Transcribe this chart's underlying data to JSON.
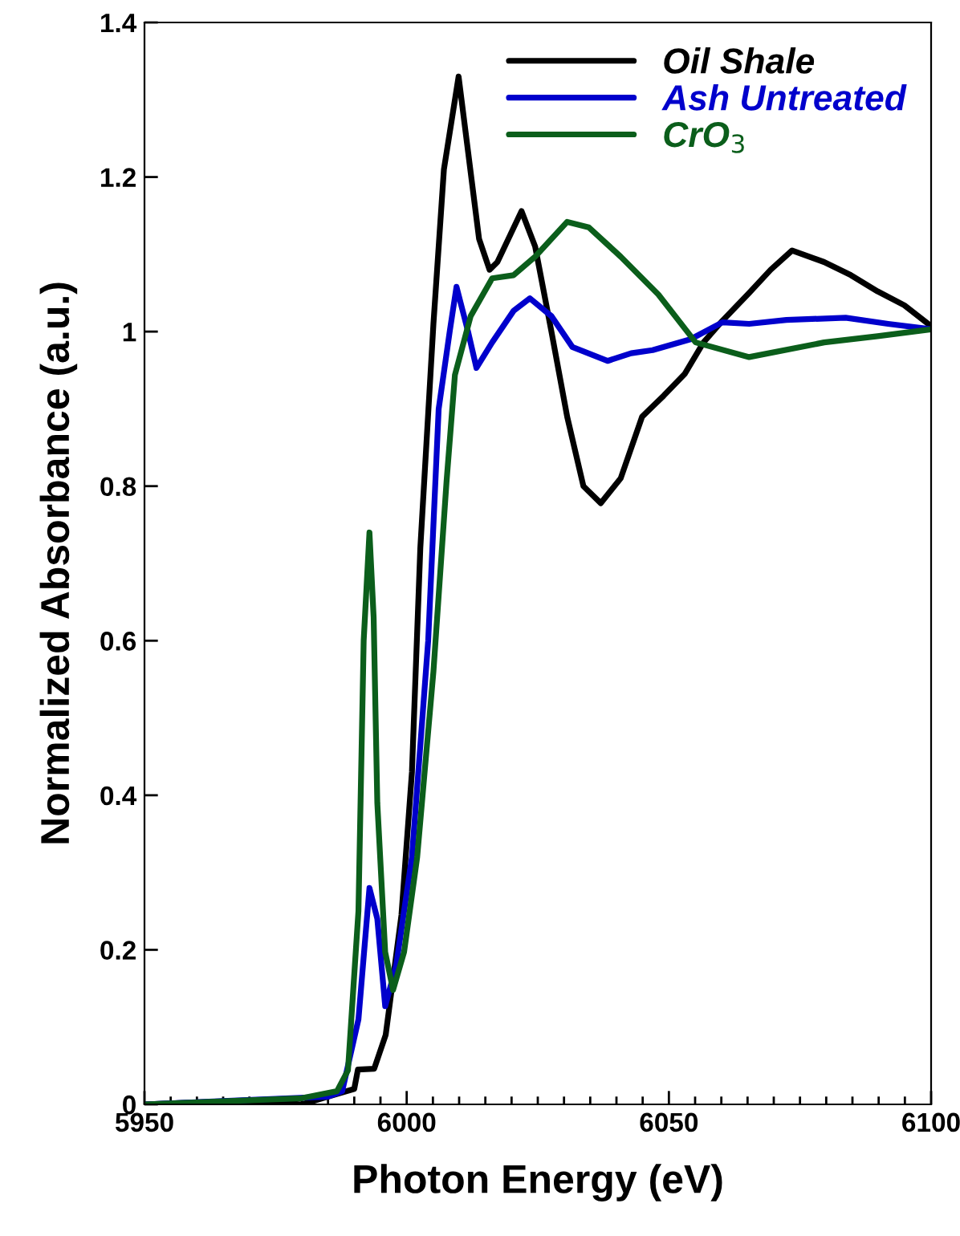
{
  "chart_data": {
    "type": "line",
    "xlabel": "Photon Energy (eV)",
    "ylabel": "Normalized Absorbance (a.u.)",
    "xlim": [
      5950,
      6100
    ],
    "ylim": [
      0,
      1.4
    ],
    "xticks": [
      5950,
      {
        "value": 5955,
        "label": null
      },
      {
        "value": 5960,
        "label": null
      },
      {
        "value": 5965,
        "label": null
      },
      {
        "value": 5970,
        "label": null
      },
      {
        "value": 5975,
        "label": null
      },
      {
        "value": 5980,
        "label": null
      },
      {
        "value": 5985,
        "label": null
      },
      {
        "value": 5990,
        "label": null
      },
      {
        "value": 5995,
        "label": null
      },
      6000,
      {
        "value": 6005,
        "label": null
      },
      {
        "value": 6010,
        "label": null
      },
      {
        "value": 6015,
        "label": null
      },
      {
        "value": 6020,
        "label": null
      },
      {
        "value": 6025,
        "label": null
      },
      {
        "value": 6030,
        "label": null
      },
      {
        "value": 6035,
        "label": null
      },
      {
        "value": 6040,
        "label": null
      },
      {
        "value": 6045,
        "label": null
      },
      6050,
      {
        "value": 6055,
        "label": null
      },
      {
        "value": 6060,
        "label": null
      },
      {
        "value": 6065,
        "label": null
      },
      {
        "value": 6070,
        "label": null
      },
      {
        "value": 6075,
        "label": null
      },
      {
        "value": 6080,
        "label": null
      },
      {
        "value": 6085,
        "label": null
      },
      {
        "value": 6090,
        "label": null
      },
      {
        "value": 6095,
        "label": null
      },
      6100
    ],
    "yticks": [
      0,
      0.2,
      0.4,
      0.6,
      0.8,
      1,
      1.2,
      1.4
    ],
    "legend": "top right",
    "grid": false,
    "line_style": "solid",
    "marker": "none",
    "series": [
      {
        "name": "Oil Shale",
        "color": "#000000",
        "x": [
          5950,
          5970,
          5980,
          5985,
          5990,
          5990.7,
          5993.8,
          5996,
          5999,
          6001,
          6002.6,
          6005.1,
          6007.1,
          6009.9,
          6013.8,
          6015.8,
          6017.3,
          6021.9,
          6024.5,
          6027.6,
          6030.6,
          6033.7,
          6037,
          6040.8,
          6044.9,
          6049,
          6053,
          6056.6,
          6060.2,
          6065.3,
          6069.4,
          6073.5,
          6079.6,
          6084.7,
          6089.8,
          6094.9,
          6100
        ],
        "values": [
          0,
          0.005,
          0,
          0.01,
          0.02,
          0.045,
          0.046,
          0.09,
          0.245,
          0.43,
          0.72,
          1.01,
          1.21,
          1.33,
          1.12,
          1.08,
          1.09,
          1.156,
          1.11,
          1.0,
          0.89,
          0.8,
          0.778,
          0.81,
          0.89,
          0.917,
          0.945,
          0.986,
          1.014,
          1.05,
          1.08,
          1.105,
          1.09,
          1.073,
          1.052,
          1.034,
          1.007
        ]
      },
      {
        "name": "Ash Untreated",
        "color": "#0000cc",
        "x": [
          5950,
          5985,
          5987.7,
          5990.8,
          5992.9,
          5994.4,
          5995.9,
          5998,
          6001,
          6004.1,
          6006.1,
          6008.2,
          6009.5,
          6011.7,
          6013.3,
          6016.3,
          6020.4,
          6023.5,
          6027.6,
          6031.6,
          6038.3,
          6042.8,
          6046.9,
          6054.1,
          6060.2,
          6065.3,
          6072.4,
          6083.7,
          6091.8,
          6100
        ],
        "values": [
          0,
          0.01,
          0.017,
          0.11,
          0.28,
          0.24,
          0.127,
          0.18,
          0.32,
          0.6,
          0.9,
          1.0,
          1.058,
          1.0,
          0.953,
          0.986,
          1.027,
          1.043,
          1.02,
          0.98,
          0.962,
          0.972,
          0.976,
          0.99,
          1.012,
          1.01,
          1.015,
          1.018,
          1.01,
          1.003
        ]
      },
      {
        "name": "CrO$_{3}$",
        "color": "#0b5e1b",
        "x": [
          5950,
          5980,
          5986.7,
          5988.8,
          5990.8,
          5991.8,
          5992.9,
          5993.7,
          5994.4,
          5995.9,
          5997.4,
          5999.5,
          6002,
          6005.1,
          6007.6,
          6009.2,
          6012.2,
          6016.3,
          6020.4,
          6024.5,
          6030.6,
          6034.7,
          6040.8,
          6048,
          6055.1,
          6065.3,
          6079.6,
          6089.8,
          6100
        ],
        "values": [
          0,
          0.008,
          0.017,
          0.044,
          0.25,
          0.6,
          0.74,
          0.63,
          0.39,
          0.197,
          0.148,
          0.197,
          0.32,
          0.56,
          0.806,
          0.944,
          1.02,
          1.069,
          1.073,
          1.097,
          1.142,
          1.135,
          1.097,
          1.048,
          0.986,
          0.967,
          0.986,
          0.994,
          1.003
        ]
      }
    ]
  }
}
